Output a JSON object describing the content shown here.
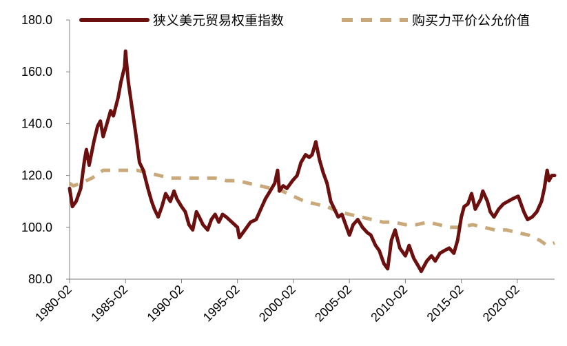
{
  "chart_data": {
    "type": "line",
    "title": "",
    "xlabel": "",
    "ylabel": "",
    "ylim": [
      80,
      180
    ],
    "y_ticks": [
      "180.0",
      "160.0",
      "140.0",
      "120.0",
      "100.0",
      "80.0"
    ],
    "x_range": [
      "1980-02",
      "2023-06"
    ],
    "x_ticks": [
      "1980-02",
      "1985-02",
      "1990-02",
      "1995-02",
      "2000-02",
      "2005-02",
      "2010-02",
      "2015-02",
      "2020-02"
    ],
    "legend_position": "top",
    "grid": false,
    "series": [
      {
        "name": "狭义美元贸易权重指数",
        "color": "#6b0f0f",
        "style": "solid",
        "points": [
          [
            "1980-02",
            115
          ],
          [
            "1980-05",
            108
          ],
          [
            "1980-09",
            110
          ],
          [
            "1981-02",
            115
          ],
          [
            "1981-06",
            126
          ],
          [
            "1981-08",
            130
          ],
          [
            "1981-11",
            124
          ],
          [
            "1982-04",
            133
          ],
          [
            "1982-08",
            139
          ],
          [
            "1982-11",
            141
          ],
          [
            "1983-02",
            135
          ],
          [
            "1983-06",
            140
          ],
          [
            "1983-10",
            145
          ],
          [
            "1984-01",
            143
          ],
          [
            "1984-06",
            150
          ],
          [
            "1984-09",
            156
          ],
          [
            "1985-01",
            162
          ],
          [
            "1985-02",
            168
          ],
          [
            "1985-05",
            156
          ],
          [
            "1985-09",
            146
          ],
          [
            "1986-01",
            136
          ],
          [
            "1986-05",
            125
          ],
          [
            "1986-09",
            122
          ],
          [
            "1987-02",
            115
          ],
          [
            "1987-06",
            110
          ],
          [
            "1987-09",
            107
          ],
          [
            "1988-01",
            104
          ],
          [
            "1988-05",
            108
          ],
          [
            "1988-09",
            113
          ],
          [
            "1989-02",
            110
          ],
          [
            "1989-06",
            114
          ],
          [
            "1989-09",
            111
          ],
          [
            "1990-02",
            108
          ],
          [
            "1990-06",
            106
          ],
          [
            "1990-10",
            101
          ],
          [
            "1991-02",
            99
          ],
          [
            "1991-06",
            106
          ],
          [
            "1991-09",
            104
          ],
          [
            "1992-01",
            101
          ],
          [
            "1992-06",
            99
          ],
          [
            "1992-10",
            103
          ],
          [
            "1993-02",
            105
          ],
          [
            "1993-06",
            102
          ],
          [
            "1993-10",
            105
          ],
          [
            "1994-02",
            104
          ],
          [
            "1994-08",
            102
          ],
          [
            "1995-02",
            100
          ],
          [
            "1995-04",
            96
          ],
          [
            "1995-10",
            99
          ],
          [
            "1996-04",
            102
          ],
          [
            "1996-10",
            103
          ],
          [
            "1997-03",
            107
          ],
          [
            "1997-08",
            111
          ],
          [
            "1998-01",
            114
          ],
          [
            "1998-06",
            117
          ],
          [
            "1998-09",
            122
          ],
          [
            "1998-11",
            114
          ],
          [
            "1999-03",
            116
          ],
          [
            "1999-07",
            115
          ],
          [
            "2000-01",
            118
          ],
          [
            "2000-06",
            120
          ],
          [
            "2000-10",
            125
          ],
          [
            "2001-03",
            128
          ],
          [
            "2001-07",
            127
          ],
          [
            "2001-10",
            128
          ],
          [
            "2002-02",
            133
          ],
          [
            "2002-06",
            126
          ],
          [
            "2002-10",
            121
          ],
          [
            "2003-02",
            117
          ],
          [
            "2003-06",
            110
          ],
          [
            "2003-10",
            107
          ],
          [
            "2004-02",
            104
          ],
          [
            "2004-06",
            105
          ],
          [
            "2004-10",
            101
          ],
          [
            "2005-02",
            97
          ],
          [
            "2005-06",
            101
          ],
          [
            "2005-11",
            103
          ],
          [
            "2006-04",
            100
          ],
          [
            "2006-09",
            98
          ],
          [
            "2007-01",
            97
          ],
          [
            "2007-06",
            93
          ],
          [
            "2007-10",
            91
          ],
          [
            "2008-03",
            86
          ],
          [
            "2008-07",
            84
          ],
          [
            "2008-11",
            95
          ],
          [
            "2009-03",
            99
          ],
          [
            "2009-08",
            92
          ],
          [
            "2010-02",
            89
          ],
          [
            "2010-06",
            93
          ],
          [
            "2010-11",
            88
          ],
          [
            "2011-04",
            85
          ],
          [
            "2011-07",
            83
          ],
          [
            "2012-01",
            87
          ],
          [
            "2012-06",
            89
          ],
          [
            "2012-10",
            87
          ],
          [
            "2013-03",
            90
          ],
          [
            "2013-08",
            91
          ],
          [
            "2014-01",
            92
          ],
          [
            "2014-06",
            90
          ],
          [
            "2014-10",
            95
          ],
          [
            "2015-02",
            104
          ],
          [
            "2015-05",
            108
          ],
          [
            "2015-09",
            109
          ],
          [
            "2016-01",
            113
          ],
          [
            "2016-05",
            107
          ],
          [
            "2016-11",
            111
          ],
          [
            "2017-01",
            114
          ],
          [
            "2017-06",
            110
          ],
          [
            "2017-09",
            106
          ],
          [
            "2018-01",
            104
          ],
          [
            "2018-06",
            107
          ],
          [
            "2018-11",
            109
          ],
          [
            "2019-04",
            110
          ],
          [
            "2019-09",
            111
          ],
          [
            "2020-03",
            112
          ],
          [
            "2020-05",
            110
          ],
          [
            "2020-09",
            106
          ],
          [
            "2021-01",
            103
          ],
          [
            "2021-06",
            104
          ],
          [
            "2021-11",
            106
          ],
          [
            "2022-04",
            110
          ],
          [
            "2022-07",
            115
          ],
          [
            "2022-10",
            122
          ],
          [
            "2022-12",
            118
          ],
          [
            "2023-03",
            120
          ],
          [
            "2023-06",
            120
          ]
        ]
      },
      {
        "name": "购买力平价公允价值",
        "color": "#c9a87a",
        "style": "dashed",
        "points": [
          [
            "1980-02",
            117
          ],
          [
            "1980-06",
            116
          ],
          [
            "1981-02",
            117
          ],
          [
            "1982-02",
            119
          ],
          [
            "1983-02",
            122
          ],
          [
            "1984-02",
            122
          ],
          [
            "1985-02",
            122
          ],
          [
            "1986-02",
            122
          ],
          [
            "1987-02",
            121
          ],
          [
            "1988-02",
            120
          ],
          [
            "1989-02",
            119
          ],
          [
            "1990-02",
            119
          ],
          [
            "1991-02",
            119
          ],
          [
            "1992-02",
            119
          ],
          [
            "1993-02",
            119
          ],
          [
            "1994-02",
            118
          ],
          [
            "1995-02",
            118
          ],
          [
            "1996-02",
            117
          ],
          [
            "1997-02",
            116
          ],
          [
            "1998-02",
            115
          ],
          [
            "1999-02",
            114
          ],
          [
            "2000-02",
            112
          ],
          [
            "2001-02",
            110
          ],
          [
            "2002-02",
            109
          ],
          [
            "2003-02",
            108
          ],
          [
            "2004-02",
            106
          ],
          [
            "2005-02",
            105
          ],
          [
            "2006-02",
            104
          ],
          [
            "2007-02",
            103
          ],
          [
            "2008-02",
            102
          ],
          [
            "2009-02",
            102
          ],
          [
            "2010-02",
            101
          ],
          [
            "2011-02",
            101
          ],
          [
            "2012-02",
            102
          ],
          [
            "2013-02",
            101
          ],
          [
            "2014-02",
            100
          ],
          [
            "2015-02",
            100
          ],
          [
            "2016-02",
            101
          ],
          [
            "2017-02",
            100
          ],
          [
            "2018-02",
            99
          ],
          [
            "2019-02",
            99
          ],
          [
            "2020-02",
            98
          ],
          [
            "2021-02",
            97
          ],
          [
            "2022-02",
            95
          ],
          [
            "2022-10",
            93
          ],
          [
            "2023-06",
            94
          ]
        ]
      }
    ]
  }
}
